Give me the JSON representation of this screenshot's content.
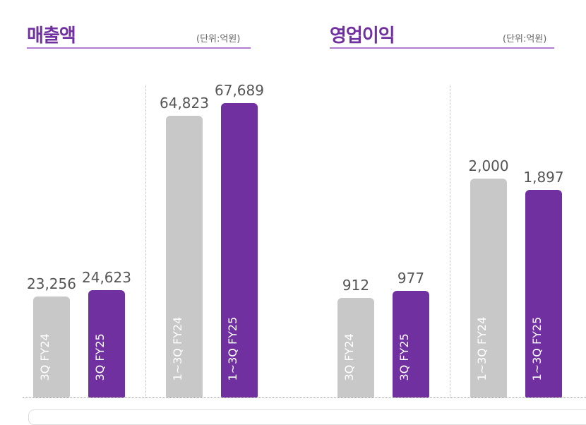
{
  "colors": {
    "prev": "#c8c8c8",
    "curr": "#7030a0",
    "accent": "#7030a0"
  },
  "chart_data": [
    {
      "type": "bar",
      "title": "매출액",
      "unit": "(단위:억원)",
      "categories": [
        "3Q  FY24",
        "3Q  FY25",
        "1~3Q  FY24",
        "1~3Q  FY25"
      ],
      "values": [
        23256,
        24623,
        64823,
        67689
      ],
      "value_labels": [
        "23,256",
        "24,623",
        "64,823",
        "67,689"
      ]
    },
    {
      "type": "bar",
      "title": "영업이익",
      "unit": "(단위:억원)",
      "categories": [
        "3Q  FY24",
        "3Q  FY25",
        "1~3Q  FY24",
        "1~3Q  FY25"
      ],
      "values": [
        912,
        977,
        2000,
        1897
      ],
      "value_labels": [
        "912",
        "977",
        "2,000",
        "1,897"
      ]
    }
  ]
}
